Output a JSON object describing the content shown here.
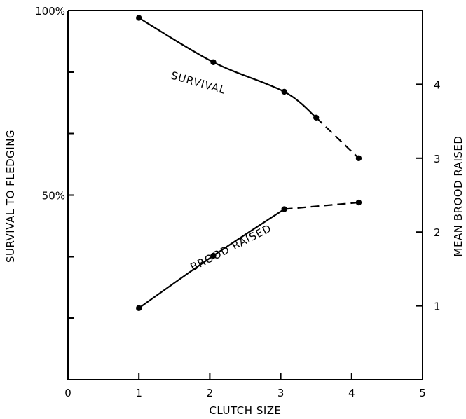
{
  "chart_data": {
    "type": "line",
    "xlabel": "CLUTCH SIZE",
    "ylabel_left": "SURVIVAL TO FLEDGING",
    "ylabel_right": "MEAN BROOD RAISED",
    "xlim": [
      0,
      5
    ],
    "x_ticks": [
      0,
      1,
      2,
      3,
      4,
      5
    ],
    "x_tick_labels": [
      "0",
      "1",
      "2",
      "3",
      "4",
      "5"
    ],
    "ylim_left": [
      0,
      100
    ],
    "y_left_ticks": [
      0,
      16.7,
      33.3,
      50,
      66.7,
      83.3,
      100
    ],
    "y_left_tick_labels": [
      {
        "value": 50,
        "label": "50%"
      },
      {
        "value": 100,
        "label": "100%"
      }
    ],
    "ylim_right": [
      0,
      5
    ],
    "y_right_ticks": [
      1,
      2,
      3,
      4
    ],
    "y_right_tick_labels": [
      "1",
      "2",
      "3",
      "4"
    ],
    "grid": false,
    "series": [
      {
        "name": "SURVIVAL",
        "axis": "left",
        "x": [
          1,
          2.05,
          3.05,
          3.5,
          4.1
        ],
        "values": [
          98,
          86,
          78,
          71,
          60
        ],
        "dashed_from_index": 3
      },
      {
        "name": "BROOD RAISED",
        "axis": "right",
        "x": [
          1,
          2.05,
          3.05,
          4.1
        ],
        "values": [
          0.97,
          1.68,
          2.31,
          2.4
        ],
        "dashed_from_index": 2
      }
    ]
  }
}
